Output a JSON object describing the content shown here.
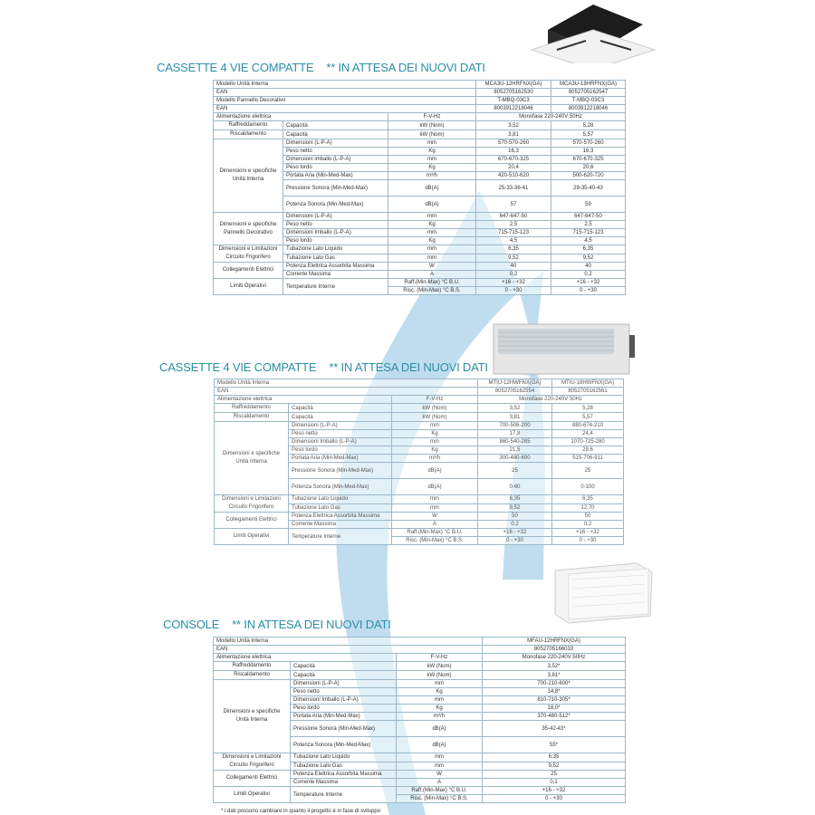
{
  "colors": {
    "title": "#2b8ea6",
    "border": "#9db8c8",
    "watermark": "#a9d2ea"
  },
  "images": {
    "cassette": "cassette-unit-image",
    "duct": "duct-unit-image",
    "console": "console-unit-image",
    "logo": "registered-logo-watermark"
  },
  "tables": [
    {
      "title": "CASSETTE 4 VIE COMPATTE",
      "note": "** IN ATTESA DEI NUOVI DATI",
      "top_rows": [
        {
          "label": "Modello Unità Interna",
          "values": [
            "MCA3U-12HRFNX(GA)",
            "MCA3U-18HRFNX(GA)"
          ]
        },
        {
          "label": "EAN",
          "values": [
            "8052705162530",
            "8052705162547"
          ]
        },
        {
          "label": "Modello Pannello Decorativo",
          "values": [
            "T-MBQ-03C3",
            "T-MBQ-03C3"
          ]
        },
        {
          "label": "EAN",
          "values": [
            "8003912218046",
            "8003912218046"
          ]
        }
      ],
      "power": {
        "label": "Alimentazione elettrica",
        "unit": "F-V-Hz",
        "value": "Monofase 220-240V 50Hz"
      },
      "groups": [
        {
          "label": "Raffreddamento",
          "rows": [
            {
              "param": "Capacità",
              "unit": "kW  (Nom)",
              "values": [
                "3,52",
                "5,28"
              ]
            }
          ]
        },
        {
          "label": "Riscaldamento",
          "rows": [
            {
              "param": "Capacità",
              "unit": "kW  (Nom)",
              "values": [
                "3,81",
                "5,57"
              ]
            }
          ]
        },
        {
          "label": "Dimensioni e specifiche Unità Interna",
          "rows": [
            {
              "param": "Dimensioni (L-P-A)",
              "unit": "mm",
              "values": [
                "570-570-260",
                "570-570-260"
              ]
            },
            {
              "param": "Peso netto",
              "unit": "Kg",
              "values": [
                "16,3",
                "16,3"
              ]
            },
            {
              "param": "Dimensioni imballo (L-P-A)",
              "unit": "mm",
              "values": [
                "670-670-325",
                "670-670-325"
              ]
            },
            {
              "param": "Peso lordo",
              "unit": "Kg",
              "values": [
                "20,4",
                "20,6"
              ]
            },
            {
              "param": "Portata Aria (Min-Med-Max)",
              "unit": "m³/h",
              "values": [
                "420-510-620",
                "500-620-720"
              ]
            },
            {
              "param": "Pressione Sonora (Min-Med-Max)",
              "unit": "dB(A)",
              "values": [
                "25-33-36-41",
                "29-35-40-43"
              ],
              "double": true
            },
            {
              "param": "Potenza Sonora (Min-Med-Max)",
              "unit": "dB(A)",
              "values": [
                "57",
                "59"
              ],
              "double": true
            }
          ]
        },
        {
          "label": "Dimensioni e specifiche Pannello Decorativo",
          "rows": [
            {
              "param": "Dimensioni (L-P-A)",
              "unit": "mm",
              "values": [
                "647-647-50",
                "647-647-50"
              ]
            },
            {
              "param": "Peso netto",
              "unit": "Kg",
              "values": [
                "2,5",
                "2,5"
              ]
            },
            {
              "param": "Dimensioni Imballo (L-P-A)",
              "unit": "mm",
              "values": [
                "715-715-123",
                "715-715-123"
              ]
            },
            {
              "param": "Peso lordo",
              "unit": "Kg",
              "values": [
                "4,5",
                "4,5"
              ]
            }
          ]
        },
        {
          "label": "Dimensioni e Limitazioni Circuito Frigorifero",
          "rows": [
            {
              "param": "Tubazione Lato Liquido",
              "unit": "mm",
              "values": [
                "6,35",
                "6,35"
              ]
            },
            {
              "param": "Tubazione Lato Gas",
              "unit": "mm",
              "values": [
                "9,52",
                "9,52"
              ]
            }
          ]
        },
        {
          "label": "Collegamenti Elettrici",
          "rows": [
            {
              "param": "Potenza Elettrica Assorbita Massima",
              "unit": "W",
              "values": [
                "40",
                "40"
              ]
            },
            {
              "param": "Corrente Massima",
              "unit": "A",
              "values": [
                "0,2",
                "0,2"
              ]
            }
          ]
        },
        {
          "label": "Limiti Operativi",
          "rows": [
            {
              "param": "Temperature Interne",
              "unit": "Raff.(Min-Max) °C B.U.",
              "values": [
                "+16 - +32",
                "+16 - +32"
              ]
            },
            {
              "unit": "Risc. (Min-Max) °C B.S.",
              "values": [
                "0 - +30",
                "0 - +30"
              ]
            }
          ]
        }
      ]
    },
    {
      "title": "CASSETTE 4 VIE COMPATTE",
      "note": "** IN ATTESA DEI NUOVI DATI",
      "top_rows": [
        {
          "label": "Modello Unità Interna",
          "values": [
            "MTIU-12HWFNX(GA)",
            "MTIU-18HWFNX(GA)"
          ]
        },
        {
          "label": "EAN",
          "values": [
            "8052705162554",
            "8052705162561"
          ]
        }
      ],
      "power": {
        "label": "Alimentazione elettrica",
        "unit": "F-V-Hz",
        "value": "Monofase 220-240V 50Hz"
      },
      "groups": [
        {
          "label": "Raffreddamento",
          "rows": [
            {
              "param": "Capacità",
              "unit": "kW  (Nom)",
              "values": [
                "3,52",
                "5,28"
              ]
            }
          ]
        },
        {
          "label": "Riscaldamento",
          "rows": [
            {
              "param": "Capacità",
              "unit": "kW  (Nom)",
              "values": [
                "3,81",
                "5,57"
              ]
            }
          ]
        },
        {
          "label": "Dimensioni e specifiche Unità Interna",
          "rows": [
            {
              "param": "Dimensioni (L-P-A)",
              "unit": "mm",
              "values": [
                "700-506-200",
                "880-674-210"
              ]
            },
            {
              "param": "Peso netto",
              "unit": "Kg",
              "values": [
                "17,8",
                "24,4"
              ]
            },
            {
              "param": "Dimensioni Imballo (L-P-A)",
              "unit": "mm",
              "values": [
                "860-540-285",
                "1070-725-280"
              ]
            },
            {
              "param": "Peso lordo",
              "unit": "Kg",
              "values": [
                "21,5",
                "29,6"
              ]
            },
            {
              "param": "Portata Aria (Min-Med-Max)",
              "unit": "m³/h",
              "values": [
                "300-480-600",
                "515-706-911"
              ]
            },
            {
              "param": "Pressione Sonora (Min-Med-Max)",
              "unit": "dB(A)",
              "values": [
                "25",
                "25"
              ],
              "double": true
            },
            {
              "param": "Potenza Sonora (Min-Med-Max)",
              "unit": "dB(A)",
              "values": [
                "0-60",
                "0-100"
              ],
              "double": true
            }
          ]
        },
        {
          "label": "Dimensioni e Limitazioni Circuito Frigorifero",
          "rows": [
            {
              "param": "Tubazione Lato Liquido",
              "unit": "mm",
              "values": [
                "6,35",
                "6,35"
              ]
            },
            {
              "param": "Tubazione Lato Gas",
              "unit": "mm",
              "values": [
                "9,52",
                "12,70"
              ]
            }
          ]
        },
        {
          "label": "Collegamenti Elettrici",
          "rows": [
            {
              "param": "Potenza Elettrica Assorbita Massima",
              "unit": "W",
              "values": [
                "50",
                "50"
              ]
            },
            {
              "param": "Corrente Massima",
              "unit": "A",
              "values": [
                "0,2",
                "0,2"
              ]
            }
          ]
        },
        {
          "label": "Limiti Operativi",
          "rows": [
            {
              "param": "Temperature Interne",
              "unit": "Raff.(Min-Max) °C B.U.",
              "values": [
                "+16 - +32",
                "+16 - +32"
              ]
            },
            {
              "unit": "Risc. (Min-Max) °C B.S.",
              "values": [
                "0 - +30",
                "0 - +30"
              ]
            }
          ]
        }
      ]
    },
    {
      "title": "CONSOLE",
      "note": "** IN ATTESA DEI NUOVI DATI",
      "top_rows": [
        {
          "label": "Modello Unità Interna",
          "values": [
            "MFAU-12HRFNX(GA)"
          ]
        },
        {
          "label": "EAN",
          "values": [
            "8052705166033"
          ]
        }
      ],
      "power": {
        "label": "Alimentazione elettrica",
        "unit": "F-V-Hz",
        "value": "Monofase 220-240V 50Hz"
      },
      "groups": [
        {
          "label": "Raffreddamento",
          "rows": [
            {
              "param": "Capacità",
              "unit": "kW  (Nom)",
              "values": [
                "3,52*"
              ]
            }
          ]
        },
        {
          "label": "Riscaldamento",
          "rows": [
            {
              "param": "Capacità",
              "unit": "kW  (Nom)",
              "values": [
                "3,81*"
              ]
            }
          ]
        },
        {
          "label": "Dimensioni e specifiche Unità Interna",
          "rows": [
            {
              "param": "Dimensioni (L-P-A)",
              "unit": "mm",
              "values": [
                "700-210-600*"
              ]
            },
            {
              "param": "Peso netto",
              "unit": "Kg",
              "values": [
                "14,8*"
              ]
            },
            {
              "param": "Dimensioni Imballo (L-P-A)",
              "unit": "mm",
              "values": [
                "810-710-305*"
              ]
            },
            {
              "param": "Peso lordo",
              "unit": "Kg",
              "values": [
                "18,0*"
              ]
            },
            {
              "param": "Portata Aria (Min-Med-Max)",
              "unit": "m³/h",
              "values": [
                "370-480-512*"
              ]
            },
            {
              "param": "Pressione Sonora (Min-Med-Max)",
              "unit": "dB(A)",
              "values": [
                "35-42-43*"
              ],
              "double": true
            },
            {
              "param": "Potenza Sonora (Min-Med-Max)",
              "unit": "dB(A)",
              "values": [
                "55*"
              ],
              "double": true
            }
          ]
        },
        {
          "label": "Dimensioni e Limitazioni Circuito Frigorifero",
          "rows": [
            {
              "param": "Tubazione Lato Liquido",
              "unit": "mm",
              "values": [
                "6,35"
              ]
            },
            {
              "param": "Tubazione Lato Gas",
              "unit": "mm",
              "values": [
                "9,52"
              ]
            }
          ]
        },
        {
          "label": "Collegamenti Elettrici",
          "rows": [
            {
              "param": "Potenza Elettrica Assorbita Massima",
              "unit": "W",
              "values": [
                "25"
              ]
            },
            {
              "param": "Corrente Massima",
              "unit": "A",
              "values": [
                "0,1"
              ]
            }
          ]
        },
        {
          "label": "Limiti Operativi",
          "rows": [
            {
              "param": "Temperature Interne",
              "unit": "Raff.(Min-Max) °C B.U.",
              "values": [
                "+16 - +32"
              ]
            },
            {
              "unit": "Risc. (Min-Max) °C B.S.",
              "values": [
                "0 - +30"
              ]
            }
          ]
        }
      ],
      "footnote": "* i dati possono cambiare in quanto il progetto è in fase di sviluppo"
    }
  ]
}
